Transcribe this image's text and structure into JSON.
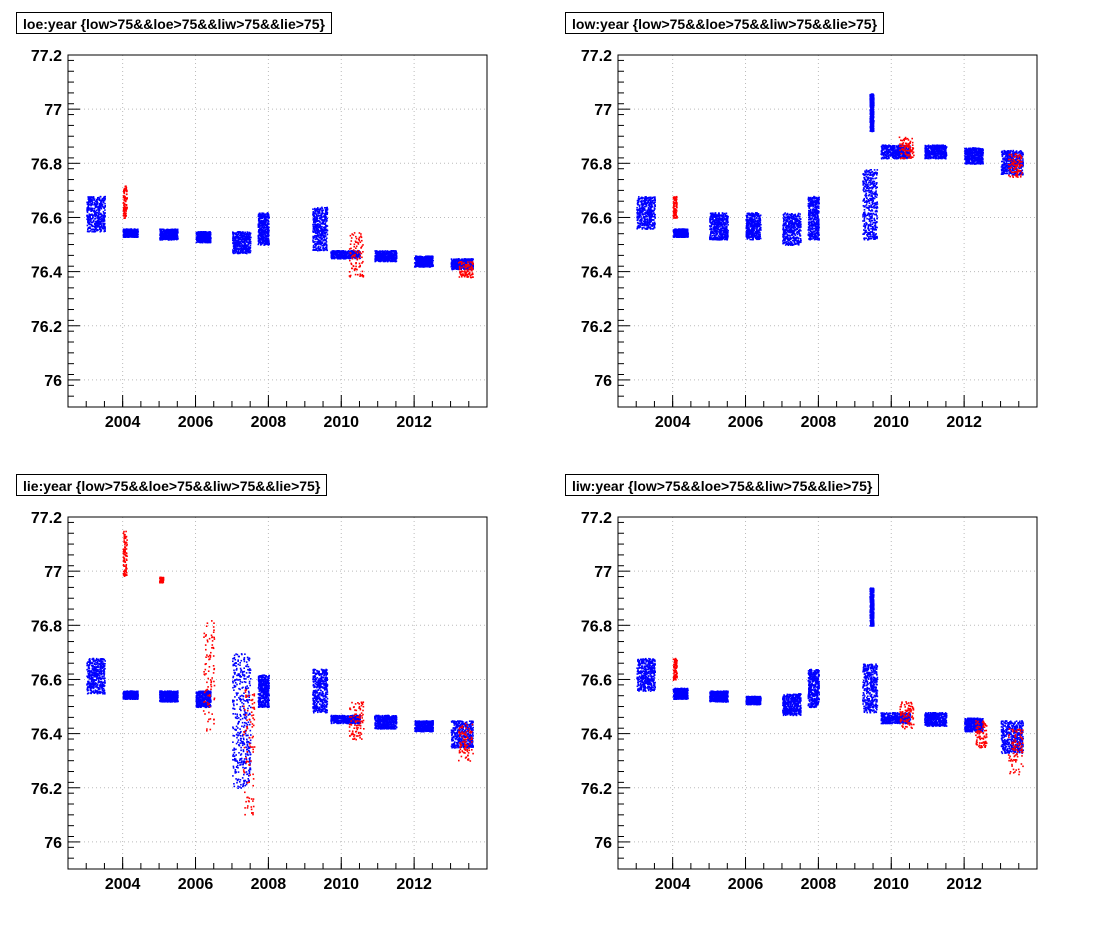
{
  "chart_data": [
    {
      "type": "scatter",
      "title": "loe:year {low>75&&loe>75&&liw>75&&lie>75}",
      "xlim": [
        2002.5,
        2014.0
      ],
      "ylim": [
        75.9,
        77.2
      ],
      "xticks": [
        "2004",
        "2006",
        "2008",
        "2010",
        "2012"
      ],
      "yticks": [
        "76",
        "76.2",
        "76.4",
        "76.6",
        "76.8",
        "77",
        "77.2"
      ],
      "grid": true,
      "series": [
        {
          "color": "#0000ff",
          "clusters": [
            {
              "x": [
                2003.0,
                2003.5
              ],
              "y": [
                76.55,
                76.68
              ]
            },
            {
              "x": [
                2004.0,
                2004.4
              ],
              "y": [
                76.53,
                76.56
              ]
            },
            {
              "x": [
                2005.0,
                2005.5
              ],
              "y": [
                76.52,
                76.56
              ]
            },
            {
              "x": [
                2006.0,
                2006.4
              ],
              "y": [
                76.51,
                76.55
              ]
            },
            {
              "x": [
                2007.0,
                2007.5
              ],
              "y": [
                76.47,
                76.55
              ]
            },
            {
              "x": [
                2007.7,
                2008.0
              ],
              "y": [
                76.5,
                76.62
              ]
            },
            {
              "x": [
                2009.2,
                2009.6
              ],
              "y": [
                76.48,
                76.64
              ]
            },
            {
              "x": [
                2009.7,
                2010.5
              ],
              "y": [
                76.45,
                76.48
              ]
            },
            {
              "x": [
                2010.9,
                2011.5
              ],
              "y": [
                76.44,
                76.48
              ]
            },
            {
              "x": [
                2012.0,
                2012.5
              ],
              "y": [
                76.42,
                76.46
              ]
            },
            {
              "x": [
                2013.0,
                2013.6
              ],
              "y": [
                76.41,
                76.45
              ]
            }
          ]
        },
        {
          "color": "#ff0000",
          "clusters": [
            {
              "x": [
                2004.0,
                2004.1
              ],
              "y": [
                76.6,
                76.72
              ]
            },
            {
              "x": [
                2010.2,
                2010.6
              ],
              "y": [
                76.38,
                76.55
              ]
            },
            {
              "x": [
                2013.2,
                2013.6
              ],
              "y": [
                76.38,
                76.44
              ]
            }
          ]
        }
      ]
    },
    {
      "type": "scatter",
      "title": "low:year {low>75&&loe>75&&liw>75&&lie>75}",
      "xlim": [
        2002.5,
        2014.0
      ],
      "ylim": [
        75.9,
        77.2
      ],
      "xticks": [
        "2004",
        "2006",
        "2008",
        "2010",
        "2012"
      ],
      "yticks": [
        "76",
        "76.2",
        "76.4",
        "76.6",
        "76.8",
        "77",
        "77.2"
      ],
      "grid": true,
      "series": [
        {
          "color": "#0000ff",
          "clusters": [
            {
              "x": [
                2003.0,
                2003.5
              ],
              "y": [
                76.56,
                76.68
              ]
            },
            {
              "x": [
                2004.0,
                2004.4
              ],
              "y": [
                76.53,
                76.56
              ]
            },
            {
              "x": [
                2005.0,
                2005.5
              ],
              "y": [
                76.52,
                76.62
              ]
            },
            {
              "x": [
                2006.0,
                2006.4
              ],
              "y": [
                76.52,
                76.62
              ]
            },
            {
              "x": [
                2007.0,
                2007.5
              ],
              "y": [
                76.5,
                76.62
              ]
            },
            {
              "x": [
                2007.7,
                2008.0
              ],
              "y": [
                76.52,
                76.68
              ]
            },
            {
              "x": [
                2009.2,
                2009.6
              ],
              "y": [
                76.52,
                76.78
              ]
            },
            {
              "x": [
                2009.4,
                2009.5
              ],
              "y": [
                76.92,
                77.06
              ]
            },
            {
              "x": [
                2009.7,
                2010.5
              ],
              "y": [
                76.82,
                76.87
              ]
            },
            {
              "x": [
                2010.9,
                2011.5
              ],
              "y": [
                76.82,
                76.87
              ]
            },
            {
              "x": [
                2012.0,
                2012.5
              ],
              "y": [
                76.8,
                76.86
              ]
            },
            {
              "x": [
                2013.0,
                2013.6
              ],
              "y": [
                76.76,
                76.85
              ]
            }
          ]
        },
        {
          "color": "#ff0000",
          "clusters": [
            {
              "x": [
                2004.0,
                2004.1
              ],
              "y": [
                76.6,
                76.68
              ]
            },
            {
              "x": [
                2010.2,
                2010.6
              ],
              "y": [
                76.82,
                76.9
              ]
            },
            {
              "x": [
                2013.2,
                2013.6
              ],
              "y": [
                76.75,
                76.84
              ]
            }
          ]
        }
      ]
    },
    {
      "type": "scatter",
      "title": "lie:year {low>75&&loe>75&&liw>75&&lie>75}",
      "xlim": [
        2002.5,
        2014.0
      ],
      "ylim": [
        75.9,
        77.2
      ],
      "xticks": [
        "2004",
        "2006",
        "2008",
        "2010",
        "2012"
      ],
      "yticks": [
        "76",
        "76.2",
        "76.4",
        "76.6",
        "76.8",
        "77",
        "77.2"
      ],
      "grid": true,
      "series": [
        {
          "color": "#0000ff",
          "clusters": [
            {
              "x": [
                2003.0,
                2003.5
              ],
              "y": [
                76.55,
                76.68
              ]
            },
            {
              "x": [
                2004.0,
                2004.4
              ],
              "y": [
                76.53,
                76.56
              ]
            },
            {
              "x": [
                2005.0,
                2005.5
              ],
              "y": [
                76.52,
                76.56
              ]
            },
            {
              "x": [
                2006.0,
                2006.4
              ],
              "y": [
                76.5,
                76.56
              ]
            },
            {
              "x": [
                2007.0,
                2007.5
              ],
              "y": [
                76.2,
                76.7
              ]
            },
            {
              "x": [
                2007.7,
                2008.0
              ],
              "y": [
                76.5,
                76.62
              ]
            },
            {
              "x": [
                2009.2,
                2009.6
              ],
              "y": [
                76.48,
                76.64
              ]
            },
            {
              "x": [
                2009.7,
                2010.5
              ],
              "y": [
                76.44,
                76.47
              ]
            },
            {
              "x": [
                2010.9,
                2011.5
              ],
              "y": [
                76.42,
                76.47
              ]
            },
            {
              "x": [
                2012.0,
                2012.5
              ],
              "y": [
                76.41,
                76.45
              ]
            },
            {
              "x": [
                2013.0,
                2013.6
              ],
              "y": [
                76.35,
                76.45
              ]
            }
          ]
        },
        {
          "color": "#ff0000",
          "clusters": [
            {
              "x": [
                2004.0,
                2004.1
              ],
              "y": [
                76.98,
                77.15
              ]
            },
            {
              "x": [
                2005.0,
                2005.1
              ],
              "y": [
                76.96,
                76.98
              ]
            },
            {
              "x": [
                2006.2,
                2006.5
              ],
              "y": [
                76.4,
                76.82
              ]
            },
            {
              "x": [
                2007.3,
                2007.6
              ],
              "y": [
                76.1,
                76.6
              ]
            },
            {
              "x": [
                2010.2,
                2010.6
              ],
              "y": [
                76.38,
                76.52
              ]
            },
            {
              "x": [
                2013.2,
                2013.6
              ],
              "y": [
                76.3,
                76.44
              ]
            }
          ]
        }
      ]
    },
    {
      "type": "scatter",
      "title": "liw:year {low>75&&loe>75&&liw>75&&lie>75}",
      "xlim": [
        2002.5,
        2014.0
      ],
      "ylim": [
        75.9,
        77.2
      ],
      "xticks": [
        "2004",
        "2006",
        "2008",
        "2010",
        "2012"
      ],
      "yticks": [
        "76",
        "76.2",
        "76.4",
        "76.6",
        "76.8",
        "77",
        "77.2"
      ],
      "grid": true,
      "series": [
        {
          "color": "#0000ff",
          "clusters": [
            {
              "x": [
                2003.0,
                2003.5
              ],
              "y": [
                76.56,
                76.68
              ]
            },
            {
              "x": [
                2004.0,
                2004.4
              ],
              "y": [
                76.53,
                76.57
              ]
            },
            {
              "x": [
                2005.0,
                2005.5
              ],
              "y": [
                76.52,
                76.56
              ]
            },
            {
              "x": [
                2006.0,
                2006.4
              ],
              "y": [
                76.51,
                76.54
              ]
            },
            {
              "x": [
                2007.0,
                2007.5
              ],
              "y": [
                76.47,
                76.55
              ]
            },
            {
              "x": [
                2007.7,
                2008.0
              ],
              "y": [
                76.5,
                76.64
              ]
            },
            {
              "x": [
                2009.2,
                2009.6
              ],
              "y": [
                76.48,
                76.66
              ]
            },
            {
              "x": [
                2009.4,
                2009.5
              ],
              "y": [
                76.8,
                76.94
              ]
            },
            {
              "x": [
                2009.7,
                2010.5
              ],
              "y": [
                76.44,
                76.48
              ]
            },
            {
              "x": [
                2010.9,
                2011.5
              ],
              "y": [
                76.43,
                76.48
              ]
            },
            {
              "x": [
                2012.0,
                2012.5
              ],
              "y": [
                76.41,
                76.46
              ]
            },
            {
              "x": [
                2013.0,
                2013.6
              ],
              "y": [
                76.33,
                76.45
              ]
            }
          ]
        },
        {
          "color": "#ff0000",
          "clusters": [
            {
              "x": [
                2004.0,
                2004.1
              ],
              "y": [
                76.6,
                76.68
              ]
            },
            {
              "x": [
                2010.2,
                2010.6
              ],
              "y": [
                76.42,
                76.52
              ]
            },
            {
              "x": [
                2012.3,
                2012.6
              ],
              "y": [
                76.35,
                76.45
              ]
            },
            {
              "x": [
                2013.2,
                2013.6
              ],
              "y": [
                76.25,
                76.42
              ]
            }
          ]
        }
      ]
    }
  ]
}
